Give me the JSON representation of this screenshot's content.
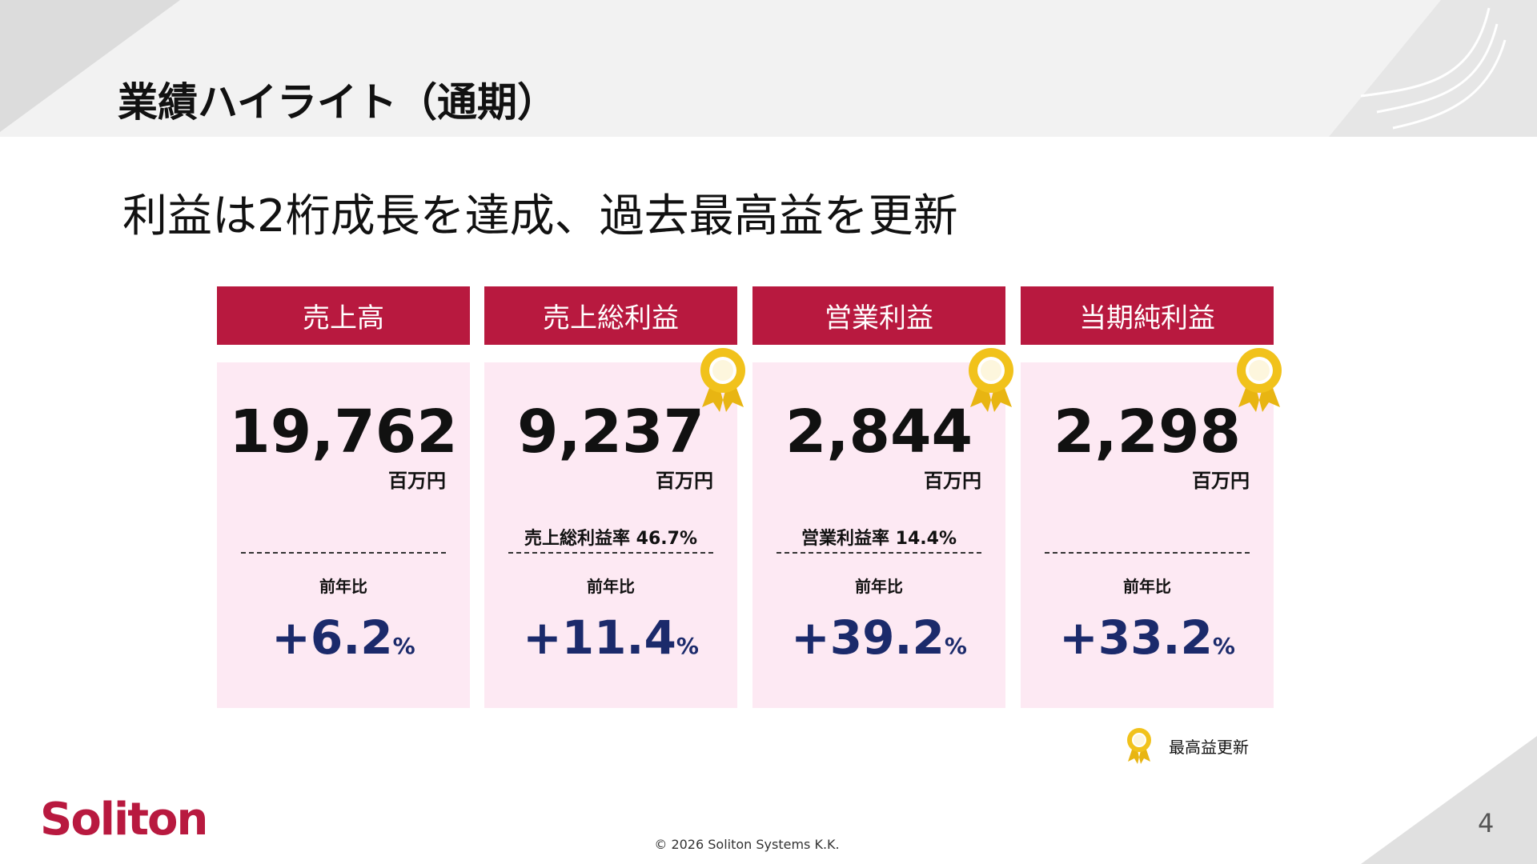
{
  "header": {
    "title": "業績ハイライト（通期）",
    "subtitle": "利益は2桁成長を達成、過去最高益を更新"
  },
  "cards": [
    {
      "label": "売上高",
      "value": "19,762",
      "unit": "百万円",
      "ratio": null,
      "yoy_label": "前年比",
      "yoy": "+6.2",
      "yoy_unit": "%",
      "record": false
    },
    {
      "label": "売上総利益",
      "value": "9,237",
      "unit": "百万円",
      "ratio": "売上総利益率  46.7%",
      "yoy_label": "前年比",
      "yoy": "+11.4",
      "yoy_unit": "%",
      "record": true
    },
    {
      "label": "営業利益",
      "value": "2,844",
      "unit": "百万円",
      "ratio": "営業利益率  14.4%",
      "yoy_label": "前年比",
      "yoy": "+39.2",
      "yoy_unit": "%",
      "record": true
    },
    {
      "label": "当期純利益",
      "value": "2,298",
      "unit": "百万円",
      "ratio": null,
      "yoy_label": "前年比",
      "yoy": "+33.2",
      "yoy_unit": "%",
      "record": true
    }
  ],
  "legend": {
    "record": "最高益更新"
  },
  "footer": {
    "logo": "Soliton",
    "copyright": "© 2026 Soliton Systems K.K.",
    "page": "4"
  }
}
